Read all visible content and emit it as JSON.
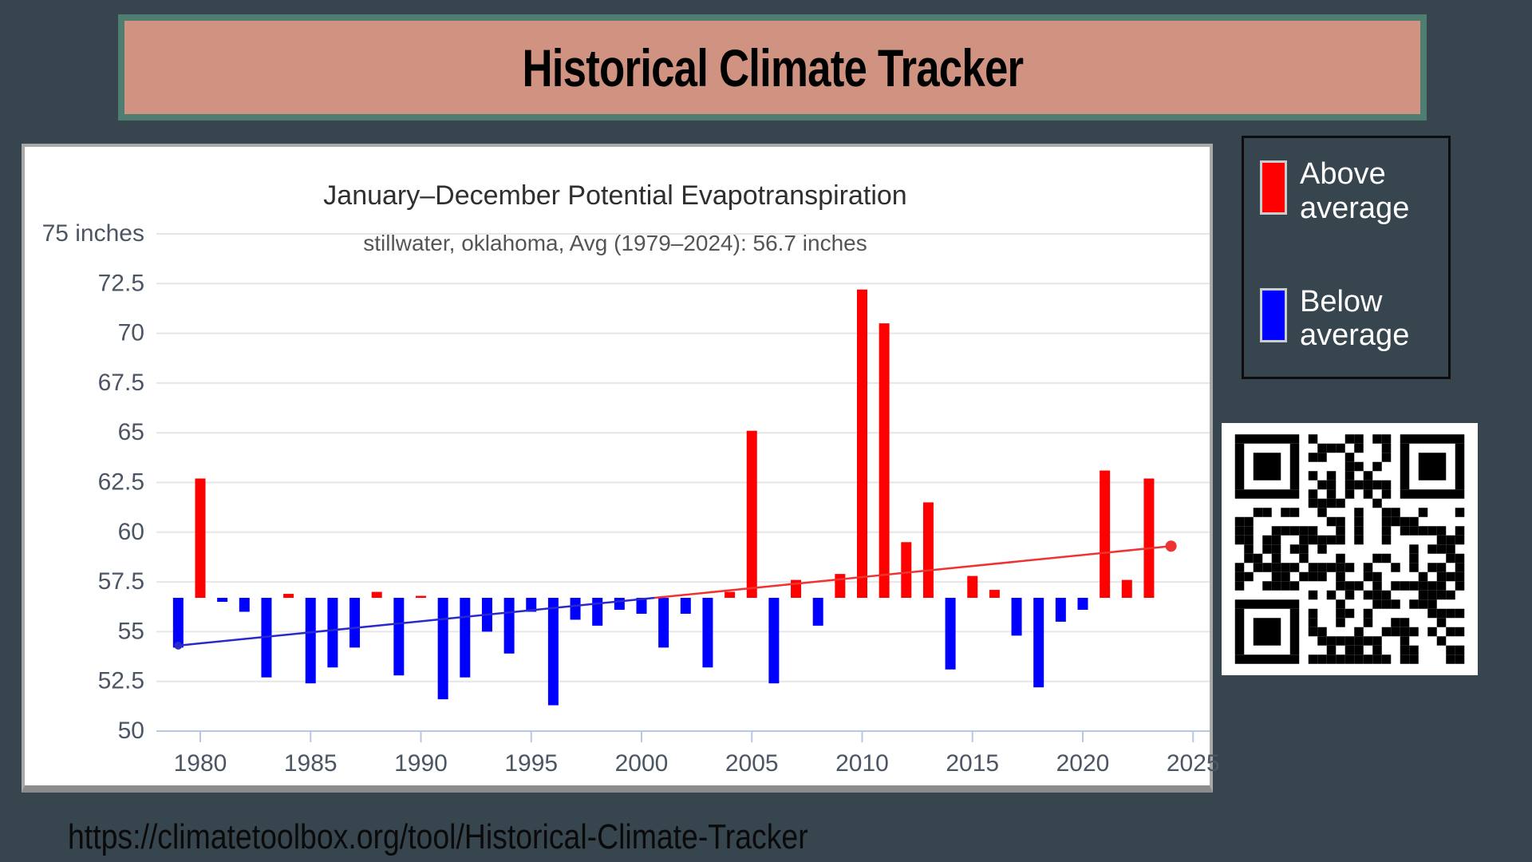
{
  "app": {
    "background_color": "#36454E"
  },
  "header": {
    "title": "Historical Climate Tracker",
    "banner_color": "#D09381",
    "banner_border_color": "#4F7D71"
  },
  "chart_data": {
    "type": "bar",
    "title": "January–December Potential Evapotranspiration",
    "subtitle": "stillwater, oklahoma, Avg (1979–2024): 56.7 inches",
    "location": "stillwater, oklahoma",
    "average_label": "Avg (1979–2024): 56.7 inches",
    "baseline_average": 56.7,
    "unit": "inches",
    "ylim": [
      50,
      75
    ],
    "ytick_top_label": "75 inches",
    "yticks": [
      75,
      72.5,
      70,
      67.5,
      65,
      62.5,
      60,
      57.5,
      55,
      52.5,
      50
    ],
    "xticks": [
      1980,
      1985,
      1990,
      1995,
      2000,
      2005,
      2010,
      2015,
      2020,
      2025
    ],
    "grid": true,
    "years": [
      1979,
      1980,
      1981,
      1982,
      1983,
      1984,
      1985,
      1986,
      1987,
      1988,
      1989,
      1990,
      1991,
      1992,
      1993,
      1994,
      1995,
      1996,
      1997,
      1998,
      1999,
      2000,
      2001,
      2002,
      2003,
      2004,
      2005,
      2006,
      2007,
      2008,
      2009,
      2010,
      2011,
      2012,
      2013,
      2014,
      2015,
      2016,
      2017,
      2018,
      2019,
      2020,
      2021,
      2022,
      2023,
      2024
    ],
    "values": [
      54.2,
      62.7,
      56.5,
      56.0,
      52.7,
      56.9,
      52.4,
      53.2,
      54.2,
      57.0,
      52.8,
      56.8,
      51.6,
      52.7,
      55.0,
      53.9,
      56.0,
      51.3,
      55.6,
      55.3,
      56.1,
      55.9,
      54.2,
      55.9,
      53.2,
      57.0,
      65.1,
      52.4,
      57.6,
      55.3,
      57.9,
      72.2,
      70.5,
      59.5,
      61.5,
      53.1,
      57.8,
      57.1,
      54.8,
      52.2,
      55.5,
      56.1,
      63.1,
      57.6,
      62.7,
      null
    ],
    "above_color": "#FF0000",
    "below_color": "#0000FF",
    "trend_line": {
      "start": {
        "year": 1979,
        "value": 54.3
      },
      "end": {
        "year": 2024,
        "value": 59.3
      },
      "below_segment_color": "#2929CC",
      "above_segment_color": "#EE3333",
      "end_dot_value": 59.3
    },
    "axis_color": "#b9c6e4",
    "gridline_color": "#e6e6e6",
    "tick_label_color": "#4b5563",
    "title_color": "#2f2f2f",
    "subtitle_color": "#555555"
  },
  "legend": {
    "items": [
      {
        "label": "Above average",
        "color": "#FF0000"
      },
      {
        "label": "Below average",
        "color": "#0000FF"
      }
    ]
  },
  "qr": {
    "alt": "QR code"
  },
  "footer": {
    "url": "https://climatetoolbox.org/tool/Historical-Climate-Tracker"
  }
}
